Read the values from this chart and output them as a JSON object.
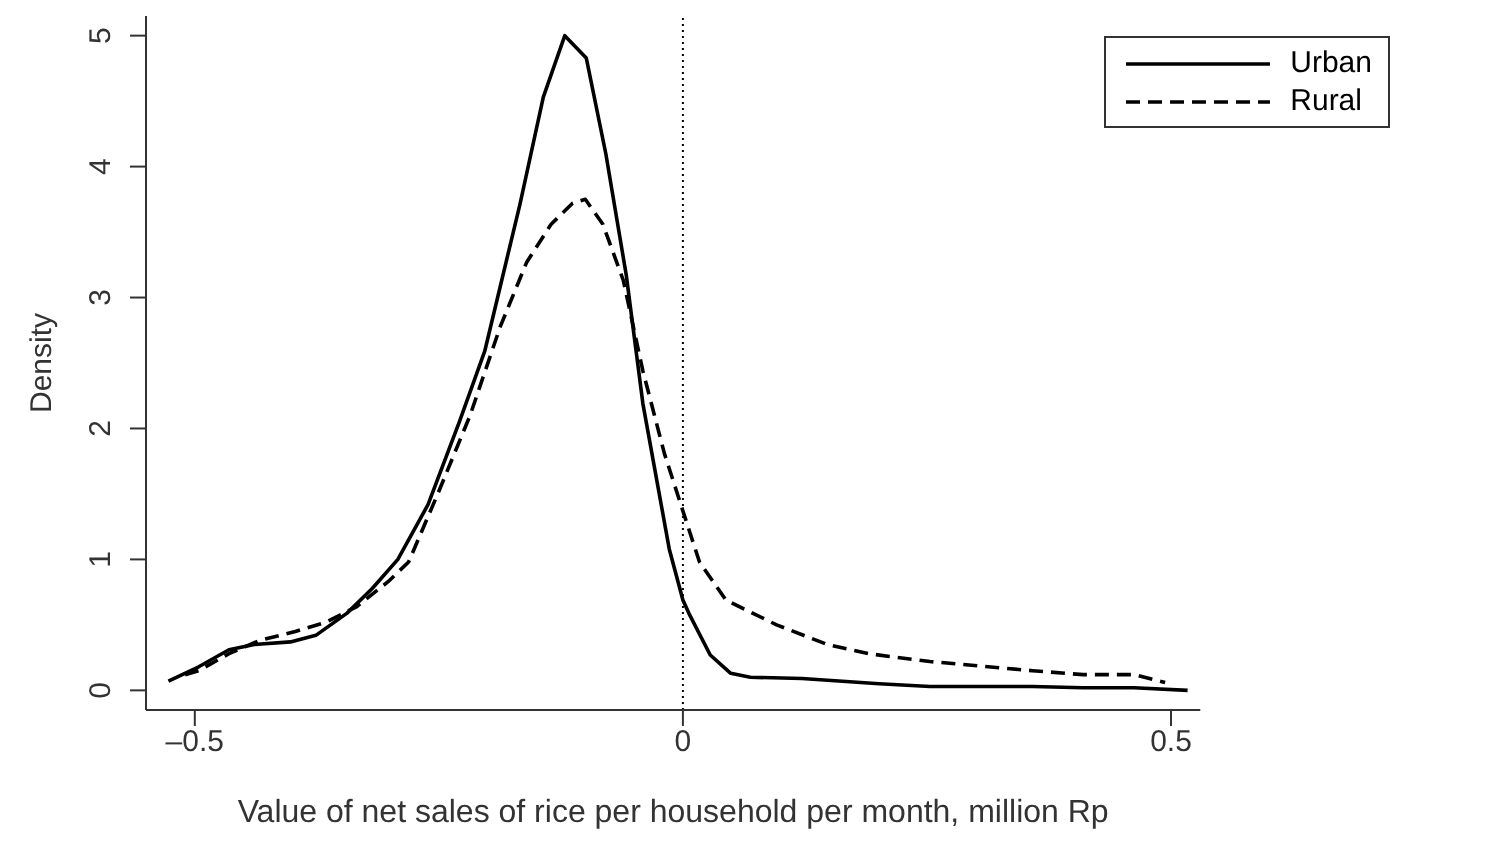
{
  "chart_data": {
    "type": "line",
    "xlabel": "Value of net sales of rice per household per month, million Rp",
    "ylabel": "Density",
    "xlim": [
      -0.55,
      0.53
    ],
    "ylim": [
      -0.15,
      5.15
    ],
    "xticks": [
      {
        "value": -0.5,
        "label": "–0.5"
      },
      0,
      0.5
    ],
    "yticks": [
      0,
      1,
      2,
      3,
      4,
      5
    ],
    "grid": false,
    "legend": "top right",
    "marker": "none",
    "ref_lines": [
      {
        "axis": "x",
        "value": 0,
        "line_style": "dotted",
        "color": "#000000"
      }
    ],
    "series": [
      {
        "name": "Urban",
        "color": "#000000",
        "line_style": "solid",
        "x": [
          -0.527,
          -0.496,
          -0.465,
          -0.439,
          -0.402,
          -0.376,
          -0.344,
          -0.318,
          -0.292,
          -0.261,
          -0.229,
          -0.203,
          -0.167,
          -0.143,
          -0.121,
          -0.099,
          -0.079,
          -0.058,
          -0.041,
          -0.014,
          0,
          0.006,
          0.028,
          0.049,
          0.069,
          0.122,
          0.201,
          0.253,
          0.358,
          0.41,
          0.462,
          0.517
        ],
        "values": [
          0.07,
          0.18,
          0.31,
          0.35,
          0.37,
          0.42,
          0.59,
          0.78,
          1.0,
          1.42,
          2.05,
          2.59,
          3.71,
          4.53,
          5.0,
          4.83,
          4.1,
          3.17,
          2.19,
          1.08,
          0.69,
          0.59,
          0.27,
          0.13,
          0.1,
          0.09,
          0.05,
          0.03,
          0.03,
          0.02,
          0.02,
          0.0
        ]
      },
      {
        "name": "Rural",
        "color": "#000000",
        "line_style": "dashed",
        "x": [
          -0.51,
          -0.496,
          -0.465,
          -0.434,
          -0.397,
          -0.366,
          -0.334,
          -0.302,
          -0.281,
          -0.25,
          -0.218,
          -0.187,
          -0.16,
          -0.135,
          -0.113,
          -0.1,
          -0.082,
          -0.061,
          -0.041,
          -0.019,
          0,
          0.017,
          0.044,
          0.096,
          0.148,
          0.19,
          0.253,
          0.358,
          0.41,
          0.462,
          0.494
        ],
        "values": [
          0.12,
          0.15,
          0.28,
          0.38,
          0.45,
          0.52,
          0.64,
          0.83,
          0.98,
          1.52,
          2.1,
          2.78,
          3.27,
          3.56,
          3.72,
          3.75,
          3.56,
          3.13,
          2.44,
          1.81,
          1.37,
          0.98,
          0.69,
          0.5,
          0.35,
          0.28,
          0.22,
          0.15,
          0.12,
          0.12,
          0.06
        ]
      }
    ]
  }
}
